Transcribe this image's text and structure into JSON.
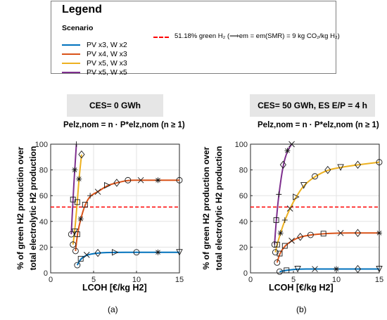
{
  "legend": {
    "title": "Legend",
    "scenario_heading": "Scenario",
    "items": [
      {
        "label": "PV x3, W x2",
        "color": "#0072bd"
      },
      {
        "label": "PV x4, W x3",
        "color": "#d95319"
      },
      {
        "label": "PV x5, W x3",
        "color": "#edb120"
      },
      {
        "label": "PV x5, W x5",
        "color": "#7e2f8e"
      }
    ],
    "reference": {
      "text": "51.18% green H₂ (⟹em = em(SMR) = 9 kg CO₂/kg H₂)",
      "color": "#ff0000"
    }
  },
  "panels": [
    {
      "caption": "(a)",
      "header": "CES= 0 GWh",
      "formula": "Pelz,nom = n · P*elz,nom (n ≥ 1)",
      "ylabel_line1": "% of green H2 production over",
      "ylabel_line2": "total electrolytic H2 production",
      "xlabel": "LCOH [€/kg H2]"
    },
    {
      "caption": "(b)",
      "header": "CES= 50 GWh, ES E/P = 4 h",
      "formula": "Pelz,nom = n · P*elz,nom (n ≥ 1)",
      "ylabel_line1": "% of green H2 production over",
      "ylabel_line2": "total electrolytic H2 production",
      "xlabel": "LCOH [€/kg H2]"
    }
  ],
  "chart_data": [
    {
      "type": "line",
      "title": "CES= 0 GWh",
      "xlabel": "LCOH [€/kg H2]",
      "ylabel": "% of green H2 production over total electrolytic H2 production",
      "xlim": [
        0,
        15
      ],
      "ylim": [
        0,
        100
      ],
      "xticks": [
        0,
        5,
        10,
        15
      ],
      "yticks": [
        0,
        20,
        40,
        60,
        80,
        100
      ],
      "reference_line": {
        "y": 51.18,
        "style": "dashed",
        "color": "#ff0000"
      },
      "series": [
        {
          "name": "PV x3, W x2",
          "color": "#0072bd",
          "x": [
            3.1,
            3.5,
            4.2,
            5.5,
            7.5,
            10,
            12.5,
            15
          ],
          "y": [
            6,
            11,
            14,
            15.5,
            16,
            16,
            16,
            16
          ],
          "markers": [
            "o",
            "square",
            "x",
            "diamond",
            "triangle-right",
            "o",
            "star",
            "triangle-down"
          ]
        },
        {
          "name": "PV x4, W x3",
          "color": "#d95319",
          "x": [
            2.9,
            3.1,
            3.5,
            4.0,
            4.6,
            5.5,
            6.6,
            7.7,
            9.0,
            10.5,
            12.5,
            15
          ],
          "y": [
            17,
            30,
            42,
            53,
            60,
            63,
            68,
            70,
            72,
            72,
            72,
            72
          ],
          "markers": [
            "o",
            "square",
            "star",
            "square",
            "+",
            "x",
            "triangle-right",
            "diamond",
            "o",
            "x",
            "star",
            "o"
          ]
        },
        {
          "name": "PV x5, W x3",
          "color": "#edb120",
          "x": [
            2.6,
            2.8,
            3.1,
            3.3,
            3.6
          ],
          "y": [
            22,
            32,
            55,
            73,
            92
          ],
          "markers": [
            "o",
            "triangle-down",
            "square",
            "star",
            "diamond"
          ]
        },
        {
          "name": "PV x5, W x5",
          "color": "#7e2f8e",
          "x": [
            2.4,
            2.6,
            2.8,
            3.0
          ],
          "y": [
            30,
            57,
            80,
            100
          ],
          "markers": [
            "o",
            "square",
            "star",
            "+"
          ]
        }
      ]
    },
    {
      "type": "line",
      "title": "CES= 50 GWh, ES E/P = 4 h",
      "xlabel": "LCOH [€/kg H2]",
      "ylabel": "% of green H2 production over total electrolytic H2 production",
      "xlim": [
        0,
        15
      ],
      "ylim": [
        0,
        100
      ],
      "xticks": [
        0,
        5,
        10,
        15
      ],
      "yticks": [
        0,
        20,
        40,
        60,
        80,
        100
      ],
      "reference_line": {
        "y": 51.18,
        "style": "dashed",
        "color": "#ff0000"
      },
      "series": [
        {
          "name": "PV x3, W x2",
          "color": "#0072bd",
          "x": [
            3.4,
            4.2,
            5.5,
            7.5,
            10,
            12.5,
            15
          ],
          "y": [
            1,
            2,
            3,
            3,
            3,
            3,
            3
          ],
          "markers": [
            "o",
            "square",
            "triangle-down",
            "x",
            "star",
            "diamond",
            "triangle-down"
          ]
        },
        {
          "name": "PV x4, W x3",
          "color": "#d95319",
          "x": [
            3.1,
            3.4,
            4.0,
            4.8,
            5.8,
            7.0,
            8.5,
            10.5,
            12.5,
            15
          ],
          "y": [
            8,
            15,
            21,
            25,
            28,
            29.5,
            30.5,
            31,
            31,
            31
          ],
          "markers": [
            "o",
            "square",
            "square",
            "x",
            "diamond",
            "o",
            "square",
            "x",
            "diamond",
            "star"
          ]
        },
        {
          "name": "PV x5, W x3",
          "color": "#edb120",
          "x": [
            2.9,
            3.1,
            3.5,
            4.0,
            4.6,
            5.3,
            6.2,
            7.5,
            9.0,
            10.5,
            12.5,
            15
          ],
          "y": [
            16,
            22,
            31,
            41,
            50,
            59,
            68,
            75,
            80,
            82,
            84,
            86
          ],
          "markers": [
            "o",
            "square",
            "star",
            "+",
            "x",
            "triangle-right",
            "triangle-down",
            "o",
            "diamond",
            "triangle-down",
            "diamond",
            "o"
          ]
        },
        {
          "name": "PV x5, W x5",
          "color": "#7e2f8e",
          "x": [
            2.8,
            3.0,
            3.3,
            3.8,
            4.3,
            4.8
          ],
          "y": [
            22,
            41,
            61,
            84,
            95,
            100
          ],
          "markers": [
            "o",
            "square",
            "+",
            "diamond",
            "star",
            "x"
          ]
        }
      ]
    }
  ]
}
